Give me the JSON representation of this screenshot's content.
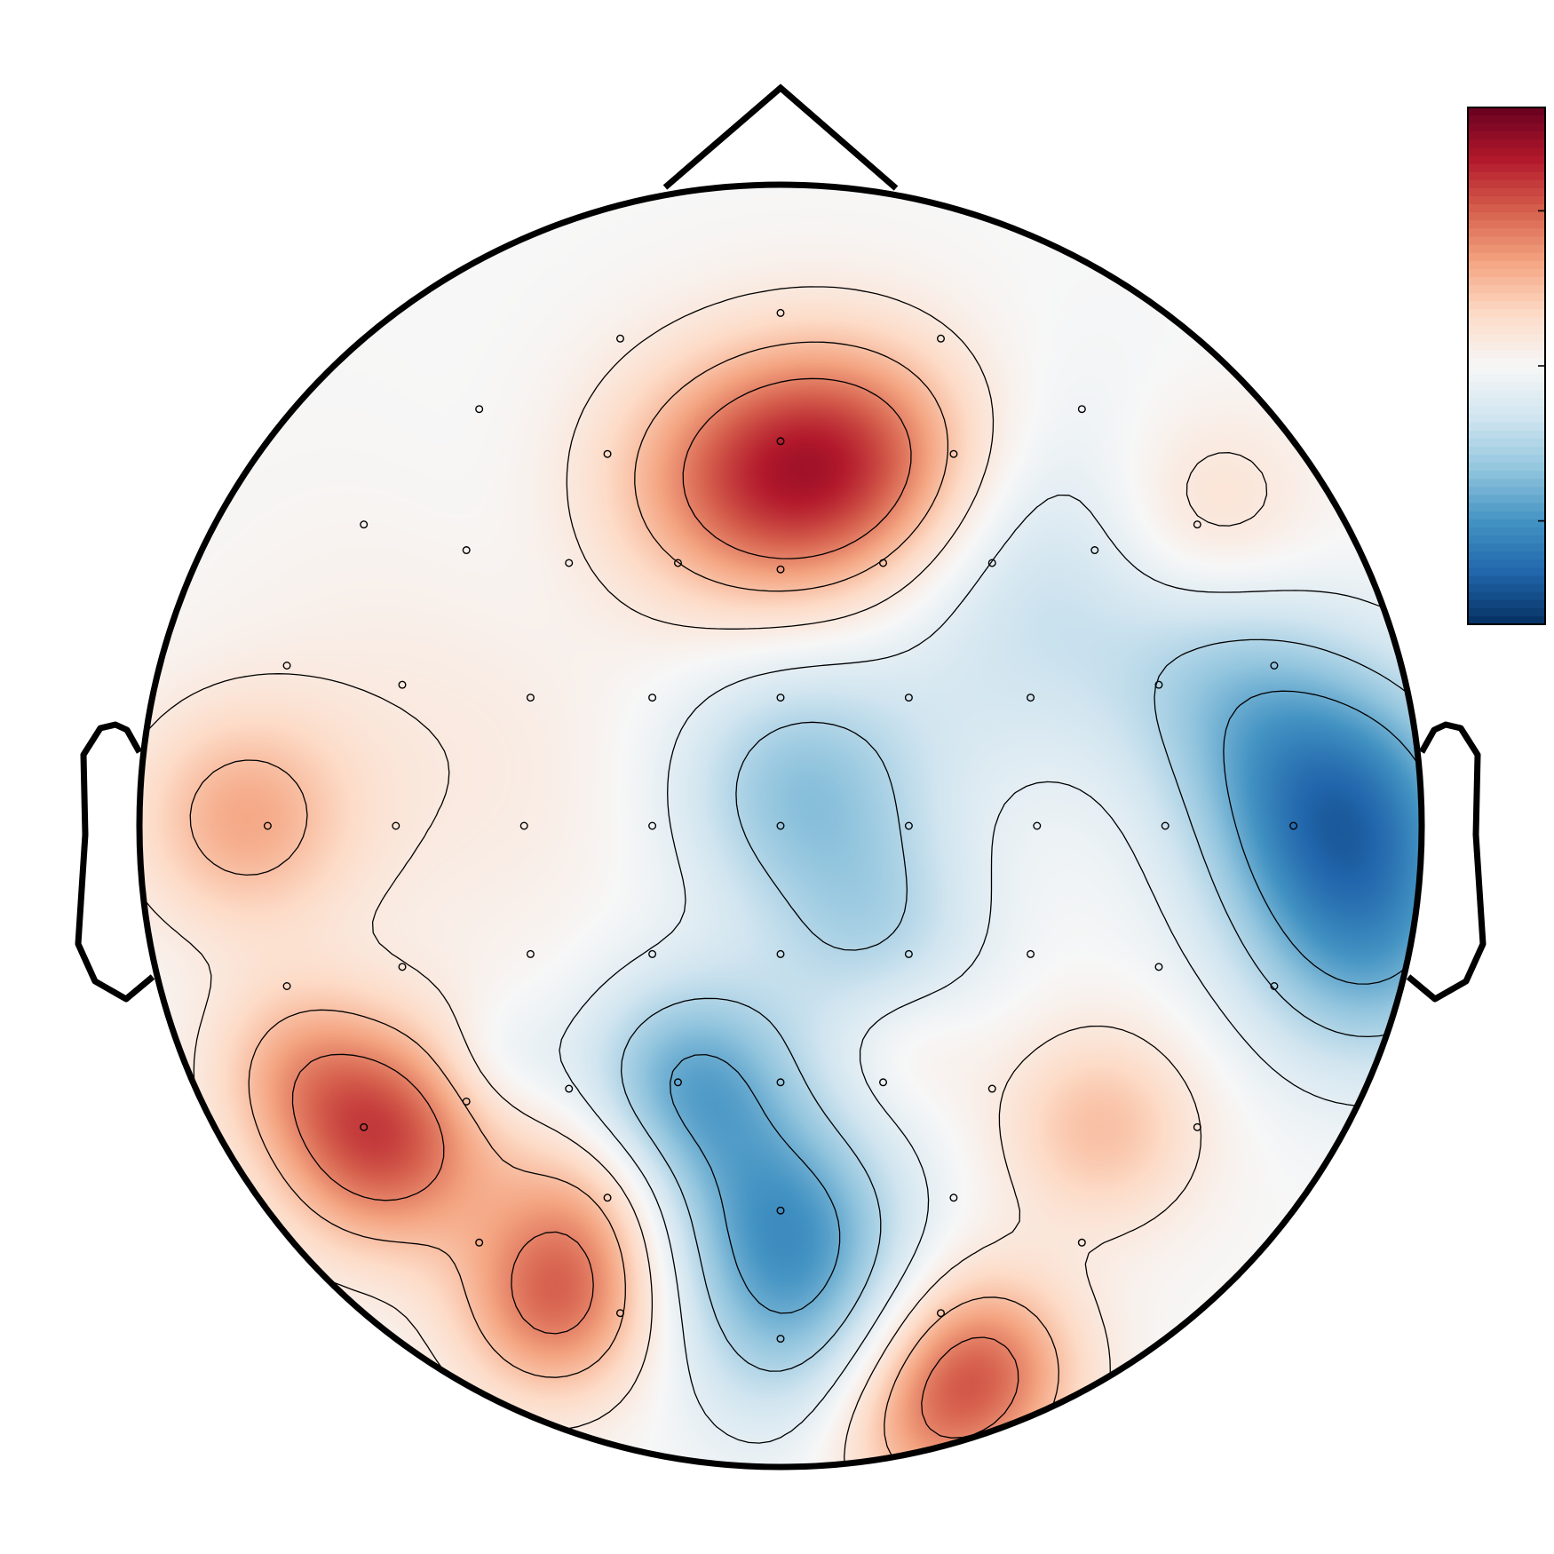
{
  "chart_data": {
    "type": "heatmap",
    "subtype": "scalp-topography",
    "colormap": "RdBu_r",
    "colors": {
      "head_outline": "#000000",
      "contour": "#000000",
      "sensor": "#000000",
      "background": "#ffffff"
    },
    "value_range": [
      -1,
      1
    ],
    "colorbar": {
      "orientation": "vertical",
      "placement": "right",
      "ticks": [
        -0.6,
        0,
        0.6
      ],
      "tick_labels_visible": false
    },
    "contour_levels": [
      -0.5,
      -0.3,
      -0.1,
      0.1,
      0.3,
      0.5
    ],
    "sensors_in_head_units": [
      [
        0,
        0.8
      ],
      [
        -0.25,
        0.76
      ],
      [
        0.25,
        0.76
      ],
      [
        -0.47,
        0.65
      ],
      [
        0.47,
        0.65
      ],
      [
        -0.27,
        0.58
      ],
      [
        0,
        0.6
      ],
      [
        0.27,
        0.58
      ],
      [
        -0.65,
        0.47
      ],
      [
        0.65,
        0.47
      ],
      [
        -0.49,
        0.43
      ],
      [
        0.49,
        0.43
      ],
      [
        -0.33,
        0.41
      ],
      [
        -0.16,
        0.41
      ],
      [
        0,
        0.4
      ],
      [
        0.16,
        0.41
      ],
      [
        0.33,
        0.41
      ],
      [
        -0.77,
        0.25
      ],
      [
        -0.59,
        0.22
      ],
      [
        -0.39,
        0.2
      ],
      [
        -0.2,
        0.2
      ],
      [
        0,
        0.2
      ],
      [
        0.2,
        0.2
      ],
      [
        0.39,
        0.2
      ],
      [
        0.59,
        0.22
      ],
      [
        0.77,
        0.25
      ],
      [
        -0.8,
        0
      ],
      [
        -0.6,
        0
      ],
      [
        -0.4,
        0
      ],
      [
        -0.2,
        0
      ],
      [
        0,
        0
      ],
      [
        0.2,
        0
      ],
      [
        0.4,
        0
      ],
      [
        0.6,
        0
      ],
      [
        0.8,
        0
      ],
      [
        -0.77,
        -0.25
      ],
      [
        -0.59,
        -0.22
      ],
      [
        -0.39,
        -0.2
      ],
      [
        -0.2,
        -0.2
      ],
      [
        0,
        -0.2
      ],
      [
        0.2,
        -0.2
      ],
      [
        0.39,
        -0.2
      ],
      [
        0.59,
        -0.22
      ],
      [
        0.77,
        -0.25
      ],
      [
        -0.49,
        -0.43
      ],
      [
        -0.33,
        -0.41
      ],
      [
        -0.16,
        -0.4
      ],
      [
        0,
        -0.4
      ],
      [
        0.16,
        -0.4
      ],
      [
        0.33,
        -0.41
      ],
      [
        -0.65,
        -0.47
      ],
      [
        0.65,
        -0.47
      ],
      [
        -0.27,
        -0.58
      ],
      [
        0,
        -0.6
      ],
      [
        0.27,
        -0.58
      ],
      [
        -0.47,
        -0.65
      ],
      [
        0.47,
        -0.65
      ],
      [
        -0.25,
        -0.76
      ],
      [
        0.25,
        -0.76
      ],
      [
        0,
        -0.8
      ]
    ],
    "field_extrema_in_head_units": [
      {
        "x": 0.03,
        "y": 0.55,
        "value": 0.62,
        "spread": 0.14
      },
      {
        "x": -0.15,
        "y": 0.53,
        "value": 0.25,
        "spread": 0.14
      },
      {
        "x": 0.18,
        "y": 0.58,
        "value": 0.28,
        "spread": 0.13
      },
      {
        "x": -0.31,
        "y": 0.43,
        "value": -0.06,
        "spread": 0.18
      },
      {
        "x": -0.84,
        "y": 0.01,
        "value": 0.35,
        "spread": 0.12
      },
      {
        "x": -0.5,
        "y": 0.14,
        "value": 0.1,
        "spread": 0.25
      },
      {
        "x": 0.66,
        "y": 0.48,
        "value": 0.22,
        "spread": 0.12
      },
      {
        "x": 0.42,
        "y": 0.4,
        "value": -0.22,
        "spread": 0.18
      },
      {
        "x": 0.34,
        "y": 0.18,
        "value": -0.05,
        "spread": 0.13
      },
      {
        "x": 0.87,
        "y": 0.03,
        "value": -0.7,
        "spread": 0.15
      },
      {
        "x": 0.92,
        "y": -0.2,
        "value": -0.4,
        "spread": 0.14
      },
      {
        "x": 0.7,
        "y": 0.22,
        "value": -0.25,
        "spread": 0.13
      },
      {
        "x": 0.03,
        "y": 0.06,
        "value": -0.4,
        "spread": 0.14
      },
      {
        "x": 0.15,
        "y": -0.17,
        "value": -0.25,
        "spread": 0.12
      },
      {
        "x": -0.14,
        "y": -0.4,
        "value": -0.5,
        "spread": 0.12
      },
      {
        "x": 0.01,
        "y": -0.62,
        "value": -0.5,
        "spread": 0.13
      },
      {
        "x": 0.02,
        "y": -0.8,
        "value": -0.25,
        "spread": 0.13
      },
      {
        "x": -0.44,
        "y": -0.37,
        "value": -0.12,
        "spread": 0.07
      },
      {
        "x": -0.62,
        "y": -0.49,
        "value": 0.65,
        "spread": 0.12
      },
      {
        "x": -0.76,
        "y": -0.37,
        "value": 0.25,
        "spread": 0.1
      },
      {
        "x": -0.35,
        "y": -0.74,
        "value": 0.55,
        "spread": 0.11
      },
      {
        "x": -0.3,
        "y": -0.57,
        "value": 0.22,
        "spread": 0.1
      },
      {
        "x": 0.31,
        "y": -0.85,
        "value": 0.55,
        "spread": 0.11
      },
      {
        "x": 0.2,
        "y": -0.95,
        "value": 0.25,
        "spread": 0.1
      },
      {
        "x": 0.5,
        "y": -0.47,
        "value": 0.3,
        "spread": 0.11
      },
      {
        "x": 0.2,
        "y": -0.34,
        "value": 0.1,
        "spread": 0.08
      }
    ]
  }
}
